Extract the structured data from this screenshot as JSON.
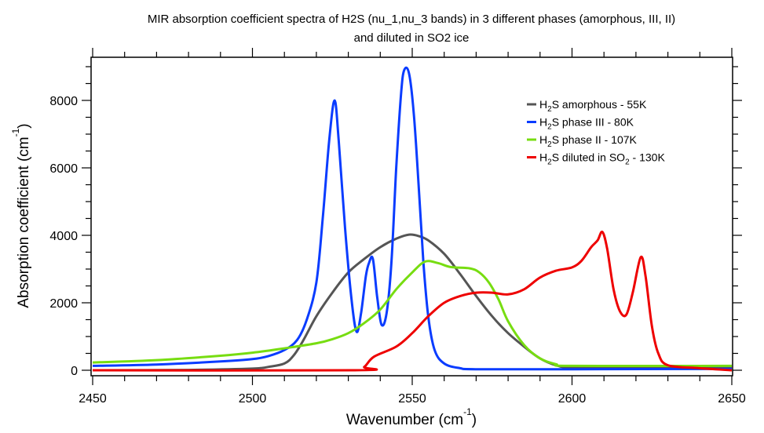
{
  "chart_data": {
    "type": "line",
    "title": "MIR absorption coefficient spectra of H2S (nu_1,nu_3 bands) in 3 different phases (amorphous, III, II)",
    "subtitle": "and diluted in SO2 ice",
    "xlabel": "Wavenumber (cm",
    "xlabel_sup": "-1",
    "xlabel_close": ")",
    "ylabel": "Absorption coefficient (cm",
    "ylabel_sup": "-1",
    "ylabel_close": ")",
    "xlim": [
      2450,
      2650
    ],
    "ylim": [
      0,
      9200
    ],
    "x_ticks": [
      2450,
      2500,
      2550,
      2600,
      2650
    ],
    "x_tick_labels": [
      "2450",
      "2500",
      "2550",
      "2600",
      "2650"
    ],
    "x_minor_step": 10,
    "y_ticks": [
      0,
      2000,
      4000,
      6000,
      8000
    ],
    "y_tick_labels": [
      "0",
      "2000",
      "4000",
      "6000",
      "8000"
    ],
    "y_minor_step": 500,
    "grid": false,
    "legend_position": "top-right",
    "series": [
      {
        "name": "H2S amorphous - 55K",
        "legend": {
          "pre": "H",
          "sub1": "2",
          "mid": "S amorphous - 55K",
          "sub2": "",
          "post": ""
        },
        "color": "#555555",
        "x": [
          2450,
          2480,
          2500,
          2505,
          2510,
          2513,
          2516,
          2520,
          2525,
          2530,
          2535,
          2540,
          2545,
          2549,
          2552,
          2555,
          2560,
          2565,
          2570,
          2575,
          2580,
          2585,
          2590,
          2595,
          2600,
          2620,
          2650
        ],
        "y": [
          0,
          10,
          50,
          100,
          200,
          450,
          900,
          1600,
          2300,
          2900,
          3300,
          3650,
          3900,
          4020,
          3980,
          3850,
          3450,
          2850,
          2200,
          1600,
          1100,
          700,
          350,
          150,
          80,
          70,
          70
        ]
      },
      {
        "name": "H2S phase III - 80K",
        "legend": {
          "pre": "H",
          "sub1": "2",
          "mid": "S phase III - 80K",
          "sub2": "",
          "post": ""
        },
        "color": "#0a3cff",
        "x": [
          2450,
          2470,
          2490,
          2500,
          2505,
          2510,
          2514,
          2517,
          2520,
          2522,
          2524,
          2525.7,
          2527,
          2529,
          2531,
          2532.6,
          2534,
          2535.5,
          2536.5,
          2537.7,
          2539,
          2540.4,
          2542,
          2543.5,
          2545,
          2546.5,
          2547.5,
          2549,
          2550.5,
          2552,
          2553.5,
          2555,
          2557,
          2560,
          2565,
          2570,
          2600,
          2650
        ],
        "y": [
          130,
          170,
          260,
          330,
          420,
          600,
          900,
          1500,
          2600,
          4500,
          6800,
          8000,
          6800,
          4200,
          2100,
          1140,
          1700,
          2800,
          3190,
          3300,
          2200,
          1350,
          1700,
          3200,
          6000,
          8200,
          8900,
          8800,
          7600,
          5500,
          3200,
          1600,
          600,
          200,
          60,
          30,
          30,
          40
        ]
      },
      {
        "name": "H2S phase II - 107K",
        "legend": {
          "pre": "H",
          "sub1": "2",
          "mid": "S phase II - 107K",
          "sub2": "",
          "post": ""
        },
        "color": "#77dd11",
        "x": [
          2450,
          2470,
          2490,
          2500,
          2510,
          2520,
          2525,
          2530,
          2535,
          2540,
          2545,
          2550,
          2554,
          2558,
          2562,
          2568,
          2571,
          2574,
          2577,
          2580,
          2585,
          2590,
          2595,
          2600,
          2650
        ],
        "y": [
          230,
          300,
          430,
          520,
          650,
          800,
          920,
          1100,
          1400,
          1800,
          2400,
          2900,
          3220,
          3180,
          3060,
          3020,
          2900,
          2600,
          2100,
          1450,
          750,
          350,
          180,
          130,
          130
        ]
      },
      {
        "name": "H2S diluted in SO2 - 130K",
        "legend": {
          "pre": "H",
          "sub1": "2",
          "mid": "S diluted in SO",
          "sub2": "2",
          "post": " - 130K"
        },
        "color": "#ee0000",
        "x": [
          2450,
          2532,
          2535,
          2538,
          2545,
          2550,
          2555,
          2560,
          2565,
          2570,
          2575,
          2580,
          2585,
          2590,
          2595,
          2600,
          2603,
          2606,
          2608,
          2609.5,
          2611,
          2613,
          2615,
          2617,
          2619,
          2621.5,
          2623,
          2625,
          2627,
          2630,
          2640,
          2650
        ],
        "y": [
          0,
          0,
          100,
          400,
          700,
          1100,
          1600,
          2000,
          2200,
          2300,
          2300,
          2250,
          2400,
          2750,
          2950,
          3050,
          3250,
          3650,
          3850,
          4100,
          3600,
          2400,
          1750,
          1650,
          2300,
          3350,
          2800,
          1300,
          500,
          150,
          60,
          0
        ]
      }
    ]
  }
}
